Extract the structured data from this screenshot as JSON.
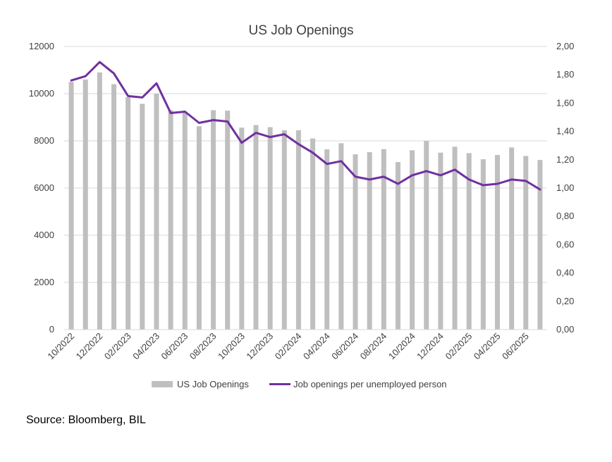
{
  "chart_data": {
    "type": "bar+line",
    "title": "US Job Openings",
    "x": [
      "10/2022",
      "11/2022",
      "12/2022",
      "01/2023",
      "02/2023",
      "03/2023",
      "04/2023",
      "05/2023",
      "06/2023",
      "07/2023",
      "08/2023",
      "09/2023",
      "10/2023",
      "11/2023",
      "12/2023",
      "01/2024",
      "02/2024",
      "03/2024",
      "04/2024",
      "05/2024",
      "06/2024",
      "07/2024",
      "08/2024",
      "09/2024",
      "10/2024",
      "11/2024",
      "12/2024",
      "01/2025",
      "02/2025",
      "03/2025",
      "04/2025",
      "05/2025",
      "06/2025",
      "07/2025"
    ],
    "x_tick_labels": [
      "10/2022",
      "12/2022",
      "02/2023",
      "04/2023",
      "06/2023",
      "08/2023",
      "10/2023",
      "12/2023",
      "02/2024",
      "04/2024",
      "06/2024",
      "08/2024",
      "10/2024",
      "12/2024",
      "02/2025",
      "04/2025",
      "06/2025"
    ],
    "series": [
      {
        "name": "US Job Openings",
        "type": "bar",
        "axis": "left",
        "color": "#bfbfbf",
        "values": [
          10500,
          10600,
          10900,
          10400,
          9850,
          9570,
          10000,
          9300,
          9200,
          8620,
          9300,
          9280,
          8560,
          8670,
          8580,
          8450,
          8450,
          8100,
          7640,
          7900,
          7430,
          7520,
          7650,
          7100,
          7600,
          8000,
          7500,
          7750,
          7480,
          7220,
          7400,
          7720,
          7360,
          7190
        ]
      },
      {
        "name": "Job openings per unemployed person",
        "type": "line",
        "axis": "right",
        "color": "#7030a0",
        "values": [
          1.76,
          1.79,
          1.89,
          1.81,
          1.65,
          1.64,
          1.74,
          1.53,
          1.54,
          1.46,
          1.48,
          1.47,
          1.32,
          1.39,
          1.36,
          1.38,
          1.31,
          1.25,
          1.17,
          1.19,
          1.08,
          1.06,
          1.08,
          1.03,
          1.09,
          1.12,
          1.09,
          1.13,
          1.06,
          1.02,
          1.03,
          1.06,
          1.05,
          0.99
        ]
      }
    ],
    "y_left": {
      "ylim": [
        0,
        12000
      ],
      "ticks": [
        "0",
        "2000",
        "4000",
        "6000",
        "8000",
        "10000",
        "12000"
      ]
    },
    "y_right": {
      "ylim": [
        0,
        2
      ],
      "ticks": [
        "0,00",
        "0,20",
        "0,40",
        "0,60",
        "0,80",
        "1,00",
        "1,20",
        "1,40",
        "1,60",
        "1,80",
        "2,00"
      ]
    },
    "grid": true,
    "legend_position": "bottom"
  },
  "source": "Source: Bloomberg, BIL"
}
